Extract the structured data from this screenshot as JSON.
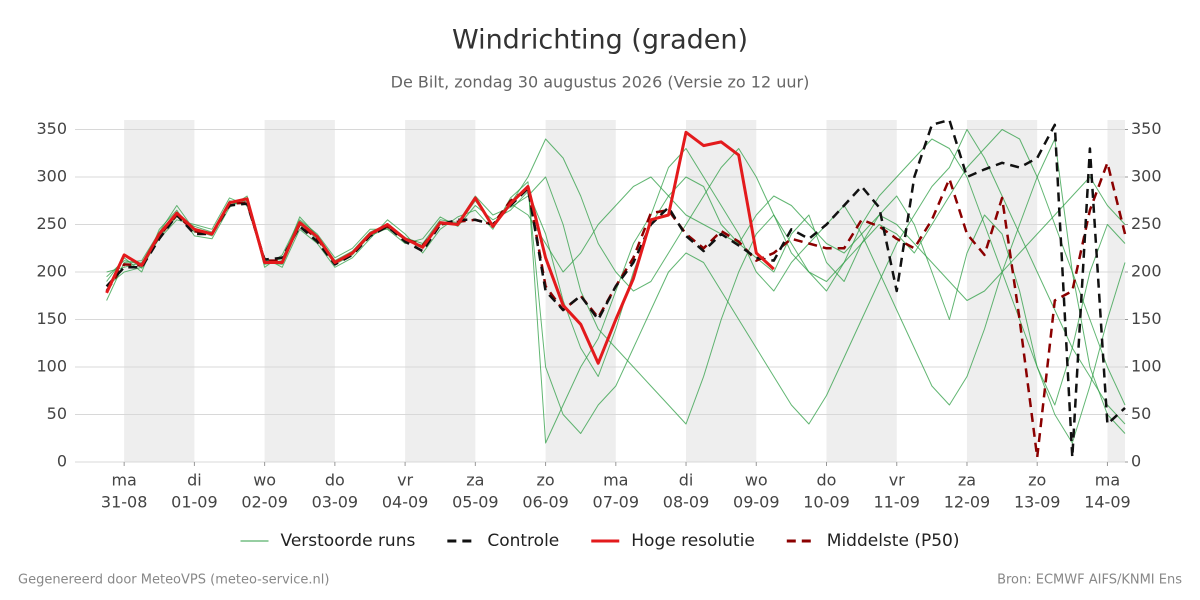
{
  "chart_data": {
    "type": "line",
    "title": "Windrichting (graden)",
    "subtitle": "De Bilt, zondag 30 augustus 2026 (Versie zo 12 uur)",
    "footer_left": "Gegenereerd door MeteoVPS (meteo-service.nl)",
    "footer_right": "Bron: ECMWF AIFS/KNMI Ens",
    "x": [
      -0.25,
      0,
      0.25,
      0.5,
      0.75,
      1,
      1.25,
      1.5,
      1.75,
      2,
      2.25,
      2.5,
      2.75,
      3,
      3.25,
      3.5,
      3.75,
      4,
      4.25,
      4.5,
      4.75,
      5,
      5.25,
      5.5,
      5.75,
      6,
      6.25,
      6.5,
      6.75,
      7,
      7.25,
      7.5,
      7.75,
      8,
      8.25,
      8.5,
      8.75,
      9,
      9.25,
      9.5,
      9.75,
      10,
      10.25,
      10.5,
      10.75,
      11,
      11.25,
      11.5,
      11.75,
      12,
      12.25,
      12.5,
      12.75,
      13,
      13.25,
      13.5,
      13.75,
      14,
      14.25
    ],
    "xlim": [
      -0.7,
      14.25
    ],
    "xticks": [
      0,
      1,
      2,
      3,
      4,
      5,
      6,
      7,
      8,
      9,
      10,
      11,
      12,
      13,
      14
    ],
    "xtick_days": [
      "ma",
      "di",
      "wo",
      "do",
      "vr",
      "za",
      "zo",
      "ma",
      "di",
      "wo",
      "do",
      "vr",
      "za",
      "zo",
      "ma"
    ],
    "xtick_dates": [
      "31-08",
      "01-09",
      "02-09",
      "03-09",
      "04-09",
      "05-09",
      "06-09",
      "07-09",
      "08-09",
      "09-09",
      "10-09",
      "11-09",
      "12-09",
      "13-09",
      "14-09"
    ],
    "ylim": [
      0,
      360
    ],
    "yticks": [
      0,
      50,
      100,
      150,
      200,
      250,
      300,
      350
    ],
    "y2lim": [
      0,
      360
    ],
    "y2ticks": [
      0,
      50,
      100,
      150,
      200,
      250,
      300,
      350
    ],
    "grid": true,
    "ensemble": {
      "name": "Verstoorde runs",
      "color": "#2e9e44",
      "runs": [
        [
          190,
          215,
          200,
          245,
          265,
          238,
          235,
          268,
          280,
          205,
          218,
          255,
          240,
          215,
          225,
          245,
          245,
          230,
          235,
          258,
          248,
          270,
          255,
          265,
          285,
          240,
          170,
          120,
          90,
          140,
          200,
          250,
          280,
          300,
          290,
          250,
          230,
          215,
          200,
          240,
          260,
          210,
          190,
          230,
          260,
          280,
          250,
          200,
          150,
          220,
          260,
          240,
          180,
          100,
          60,
          120,
          200,
          250,
          230
        ],
        [
          200,
          205,
          210,
          235,
          255,
          250,
          245,
          278,
          270,
          215,
          205,
          245,
          230,
          205,
          215,
          235,
          255,
          240,
          220,
          245,
          258,
          265,
          245,
          278,
          295,
          20,
          60,
          100,
          130,
          180,
          230,
          260,
          310,
          330,
          300,
          270,
          240,
          200,
          180,
          210,
          230,
          250,
          270,
          240,
          200,
          160,
          120,
          80,
          60,
          90,
          140,
          200,
          250,
          300,
          340,
          200,
          100,
          50,
          30
        ],
        [
          170,
          210,
          212,
          242,
          270,
          244,
          238,
          275,
          272,
          208,
          212,
          258,
          238,
          212,
          222,
          242,
          250,
          236,
          230,
          255,
          252,
          280,
          260,
          268,
          280,
          300,
          250,
          180,
          140,
          120,
          100,
          80,
          60,
          40,
          90,
          150,
          200,
          240,
          260,
          230,
          200,
          180,
          210,
          250,
          280,
          300,
          320,
          340,
          330,
          300,
          250,
          200,
          150,
          100,
          50,
          20,
          80,
          150,
          210
        ],
        [
          185,
          200,
          205,
          238,
          258,
          248,
          242,
          270,
          275,
          212,
          210,
          250,
          235,
          208,
          218,
          238,
          246,
          234,
          228,
          250,
          250,
          275,
          250,
          272,
          260,
          230,
          200,
          220,
          250,
          270,
          290,
          300,
          280,
          260,
          250,
          240,
          230,
          260,
          280,
          270,
          250,
          230,
          220,
          240,
          260,
          250,
          230,
          210,
          190,
          170,
          180,
          200,
          220,
          240,
          260,
          280,
          300,
          270,
          250
        ],
        [
          195,
          212,
          208,
          240,
          262,
          242,
          240,
          272,
          276,
          210,
          214,
          252,
          236,
          210,
          220,
          240,
          250,
          235,
          226,
          252,
          250,
          276,
          248,
          270,
          290,
          100,
          50,
          30,
          60,
          80,
          120,
          160,
          200,
          220,
          210,
          180,
          150,
          120,
          90,
          60,
          40,
          70,
          110,
          150,
          190,
          230,
          260,
          290,
          310,
          350,
          320,
          280,
          240,
          200,
          160,
          120,
          90,
          60,
          40
        ],
        [
          180,
          218,
          204,
          236,
          260,
          246,
          240,
          270,
          278,
          210,
          208,
          250,
          238,
          210,
          220,
          240,
          248,
          236,
          226,
          252,
          250,
          278,
          248,
          272,
          300,
          340,
          320,
          280,
          230,
          200,
          180,
          190,
          220,
          250,
          280,
          310,
          330,
          300,
          260,
          220,
          200,
          190,
          210,
          230,
          250,
          240,
          220,
          250,
          280,
          310,
          330,
          350,
          340,
          300,
          250,
          200,
          150,
          100,
          60
        ]
      ]
    },
    "series": [
      {
        "name": "Controle",
        "color": "#111111",
        "dashed": true,
        "values": [
          185,
          205,
          205,
          235,
          260,
          240,
          240,
          270,
          272,
          213,
          215,
          248,
          232,
          208,
          218,
          238,
          248,
          232,
          222,
          250,
          255,
          255,
          250,
          270,
          288,
          180,
          160,
          175,
          150,
          185,
          210,
          250,
          268,
          238,
          222,
          240,
          228,
          215,
          212,
          245,
          235,
          250,
          270,
          290,
          268,
          180,
          300,
          355,
          360,
          300,
          308,
          315,
          310,
          320,
          355,
          5,
          330,
          40,
          57
        ]
      },
      {
        "name": "Hoge resolutie",
        "color": "#e31a1c",
        "dashed": false,
        "values": [
          178,
          218,
          207,
          240,
          262,
          245,
          240,
          273,
          277,
          210,
          210,
          252,
          237,
          210,
          220,
          240,
          250,
          235,
          226,
          252,
          250,
          278,
          248,
          272,
          290,
          215,
          165,
          145,
          104,
          150,
          193,
          255,
          260,
          347,
          333,
          337,
          323,
          220,
          203,
          null,
          null,
          null,
          null,
          null,
          null,
          null,
          null,
          null,
          null,
          null,
          null,
          null,
          null,
          null,
          null,
          null,
          null,
          null,
          null
        ]
      },
      {
        "name": "Middelste (P50)",
        "color": "#8b0000",
        "dashed": true,
        "values": [
          180,
          208,
          207,
          238,
          260,
          243,
          240,
          272,
          273,
          212,
          212,
          250,
          235,
          210,
          220,
          240,
          248,
          235,
          228,
          250,
          253,
          255,
          250,
          275,
          288,
          185,
          160,
          175,
          152,
          185,
          215,
          262,
          265,
          240,
          225,
          243,
          232,
          212,
          220,
          235,
          230,
          225,
          225,
          255,
          248,
          235,
          225,
          255,
          298,
          240,
          218,
          278,
          150,
          5,
          170,
          180,
          265,
          315,
          240
        ]
      }
    ]
  }
}
